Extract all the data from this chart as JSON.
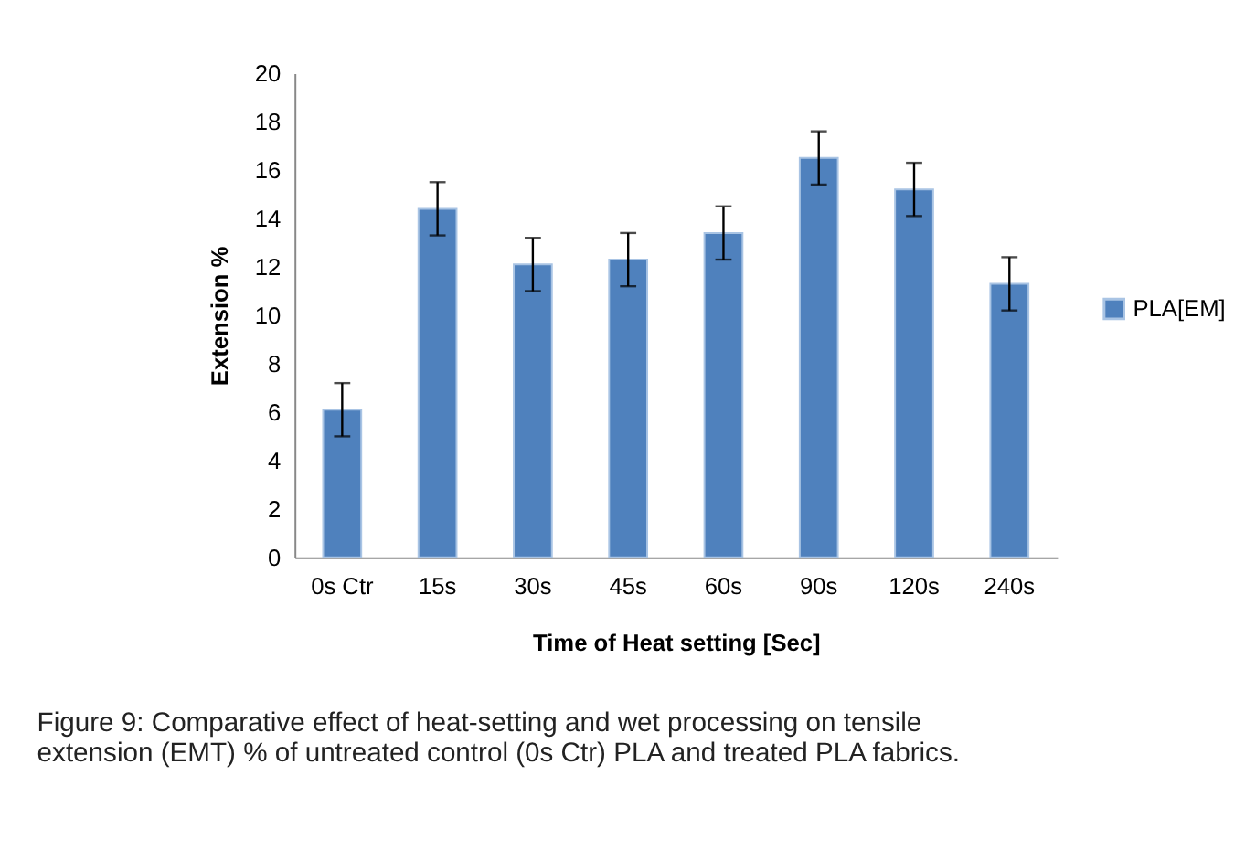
{
  "chart_data": {
    "type": "bar",
    "xlabel": "Time of Heat setting [Sec]",
    "ylabel": "Extension %",
    "categories": [
      "0s Ctr",
      "15s",
      "30s",
      "45s",
      "60s",
      "90s",
      "120s",
      "240s"
    ],
    "series": [
      {
        "name": "PLA[EM]",
        "color": "#4f81bd",
        "values": [
          6.1,
          14.4,
          12.1,
          12.3,
          13.4,
          16.5,
          15.2,
          11.3
        ],
        "errors": [
          1.1,
          1.1,
          1.1,
          1.1,
          1.1,
          1.1,
          1.1,
          1.1
        ]
      }
    ],
    "ylim": [
      0,
      20
    ],
    "yticks": [
      0,
      2,
      4,
      6,
      8,
      10,
      12,
      14,
      16,
      18,
      20
    ],
    "grid": false,
    "legend": "right",
    "annotations": [
      "Figure 9: Comparative effect of heat-setting and wet processing on tensile extension (EMT) % of untreated control (0s Ctr) PLA and treated PLA fabrics."
    ]
  }
}
